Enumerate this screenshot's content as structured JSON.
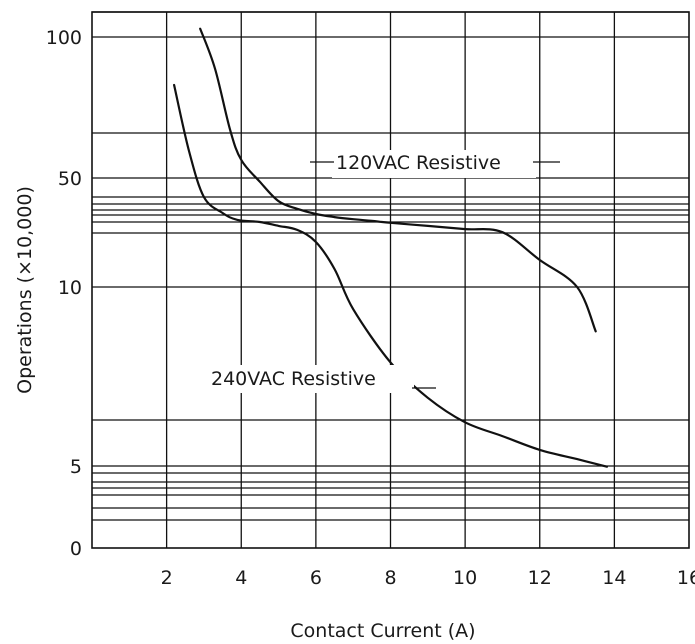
{
  "chart_data": {
    "type": "line",
    "xlabel": "Contact Current (A)",
    "ylabel": "Operations (×10,000)",
    "xlim": [
      0,
      16
    ],
    "x_ticks": [
      2,
      4,
      6,
      8,
      10,
      12,
      14,
      16
    ],
    "x_tick_labels": [
      "2",
      "4",
      "6",
      "8",
      "10",
      "12",
      "14",
      "16"
    ],
    "y_tick_labels": [
      {
        "label": "100",
        "value": 100
      },
      {
        "label": "50",
        "value": 50
      },
      {
        "label": "10",
        "value": 10
      },
      {
        "label": "5",
        "value": 5
      },
      {
        "label": "0",
        "value": 1
      }
    ],
    "y_grid_values": [
      1.5,
      2,
      2.5,
      3,
      3.5,
      4,
      5,
      7,
      10,
      13,
      20,
      30,
      35,
      40,
      45,
      50,
      70,
      100,
      130
    ],
    "grid": true,
    "series": [
      {
        "name": "120VAC Resistive",
        "x": [
          2.9,
          3.3,
          3.7,
          4.0,
          4.5,
          5.0,
          5.5,
          6.0,
          6.5,
          7.0,
          7.5,
          8.0,
          9.0,
          10.0,
          11.0,
          12.0,
          13.0,
          13.5
        ],
        "y": [
          110,
          90,
          71,
          58,
          49,
          42,
          36,
          31,
          27,
          24,
          21.5,
          19.5,
          17.5,
          15.5,
          13.5,
          11.5,
          10,
          9
        ]
      },
      {
        "name": "240VAC Resistive",
        "x": [
          2.2,
          2.6,
          3.0,
          3.5,
          3.9,
          4.5,
          5.0,
          5.5,
          6.0,
          6.5,
          7.0,
          8.0,
          9.0,
          10.0,
          11.0,
          12.0,
          13.0,
          13.8
        ],
        "y": [
          85,
          62,
          45,
          32,
          23,
          20,
          17.5,
          15,
          12.5,
          11,
          9.5,
          8.3,
          7.5,
          6.9,
          6.3,
          5.7,
          5.3,
          4.9
        ]
      }
    ]
  }
}
